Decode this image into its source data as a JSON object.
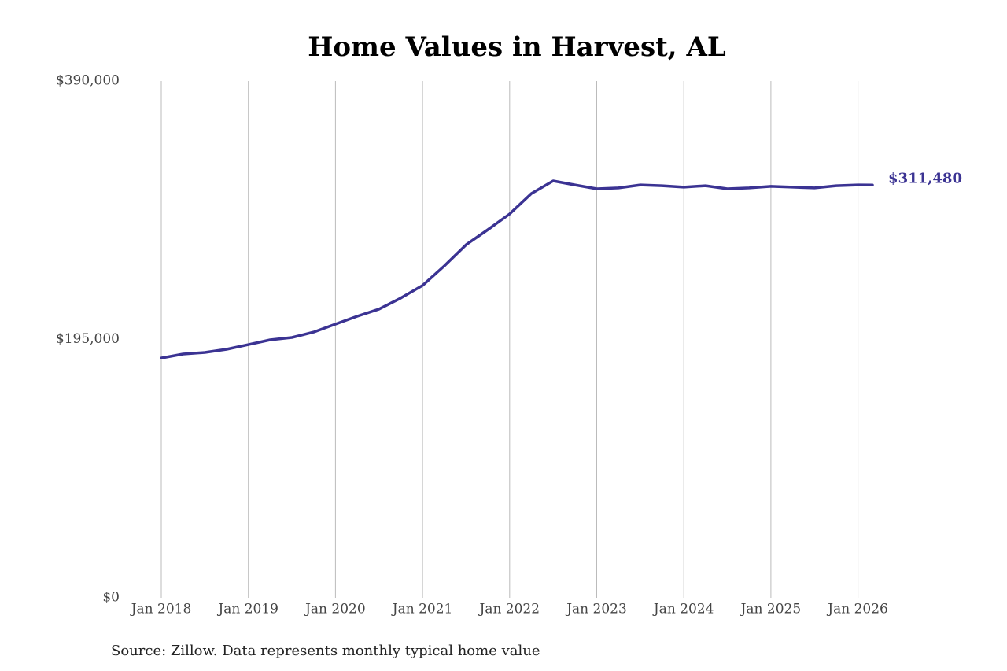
{
  "chart_data": {
    "type": "line",
    "title": "Home Values in Harvest, AL",
    "source": "Source: Zillow. Data represents monthly typical home value",
    "color": "#3b3393",
    "x": [
      "2018-01",
      "2018-04",
      "2018-07",
      "2018-10",
      "2019-01",
      "2019-04",
      "2019-07",
      "2019-10",
      "2020-01",
      "2020-04",
      "2020-07",
      "2020-10",
      "2021-01",
      "2021-04",
      "2021-07",
      "2021-10",
      "2022-01",
      "2022-04",
      "2022-07",
      "2022-10",
      "2023-01",
      "2023-04",
      "2023-07",
      "2023-10",
      "2024-01",
      "2024-04",
      "2024-07",
      "2024-10",
      "2025-01",
      "2025-04",
      "2025-07",
      "2025-10",
      "2026-01",
      "2026-03"
    ],
    "values": [
      181000,
      184000,
      185200,
      187600,
      191100,
      194700,
      196500,
      200600,
      206600,
      212500,
      217900,
      226200,
      235700,
      250500,
      266500,
      277800,
      289700,
      305100,
      314600,
      311600,
      308700,
      309300,
      311600,
      311000,
      309900,
      311000,
      308700,
      309300,
      310500,
      309900,
      309300,
      311000,
      311600,
      311480
    ],
    "value_labels": [
      null,
      null,
      null,
      null,
      null,
      null,
      null,
      null,
      null,
      null,
      null,
      null,
      null,
      null,
      null,
      null,
      null,
      null,
      null,
      null,
      null,
      null,
      null,
      null,
      null,
      null,
      null,
      null,
      null,
      null,
      null,
      null,
      null,
      "$311,480"
    ],
    "ylim": [
      0,
      390000
    ],
    "yticks": [
      {
        "value": 0,
        "label": "$0"
      },
      {
        "value": 195000,
        "label": "$195,000"
      },
      {
        "value": 390000,
        "label": "$390,000"
      }
    ],
    "xticks": [
      {
        "value": "2018-01",
        "label": "Jan 2018"
      },
      {
        "value": "2019-01",
        "label": "Jan 2019"
      },
      {
        "value": "2020-01",
        "label": "Jan 2020"
      },
      {
        "value": "2021-01",
        "label": "Jan 2021"
      },
      {
        "value": "2022-01",
        "label": "Jan 2022"
      },
      {
        "value": "2023-01",
        "label": "Jan 2023"
      },
      {
        "value": "2024-01",
        "label": "Jan 2024"
      },
      {
        "value": "2025-01",
        "label": "Jan 2025"
      },
      {
        "value": "2026-01",
        "label": "Jan 2026"
      }
    ],
    "grid": true
  }
}
